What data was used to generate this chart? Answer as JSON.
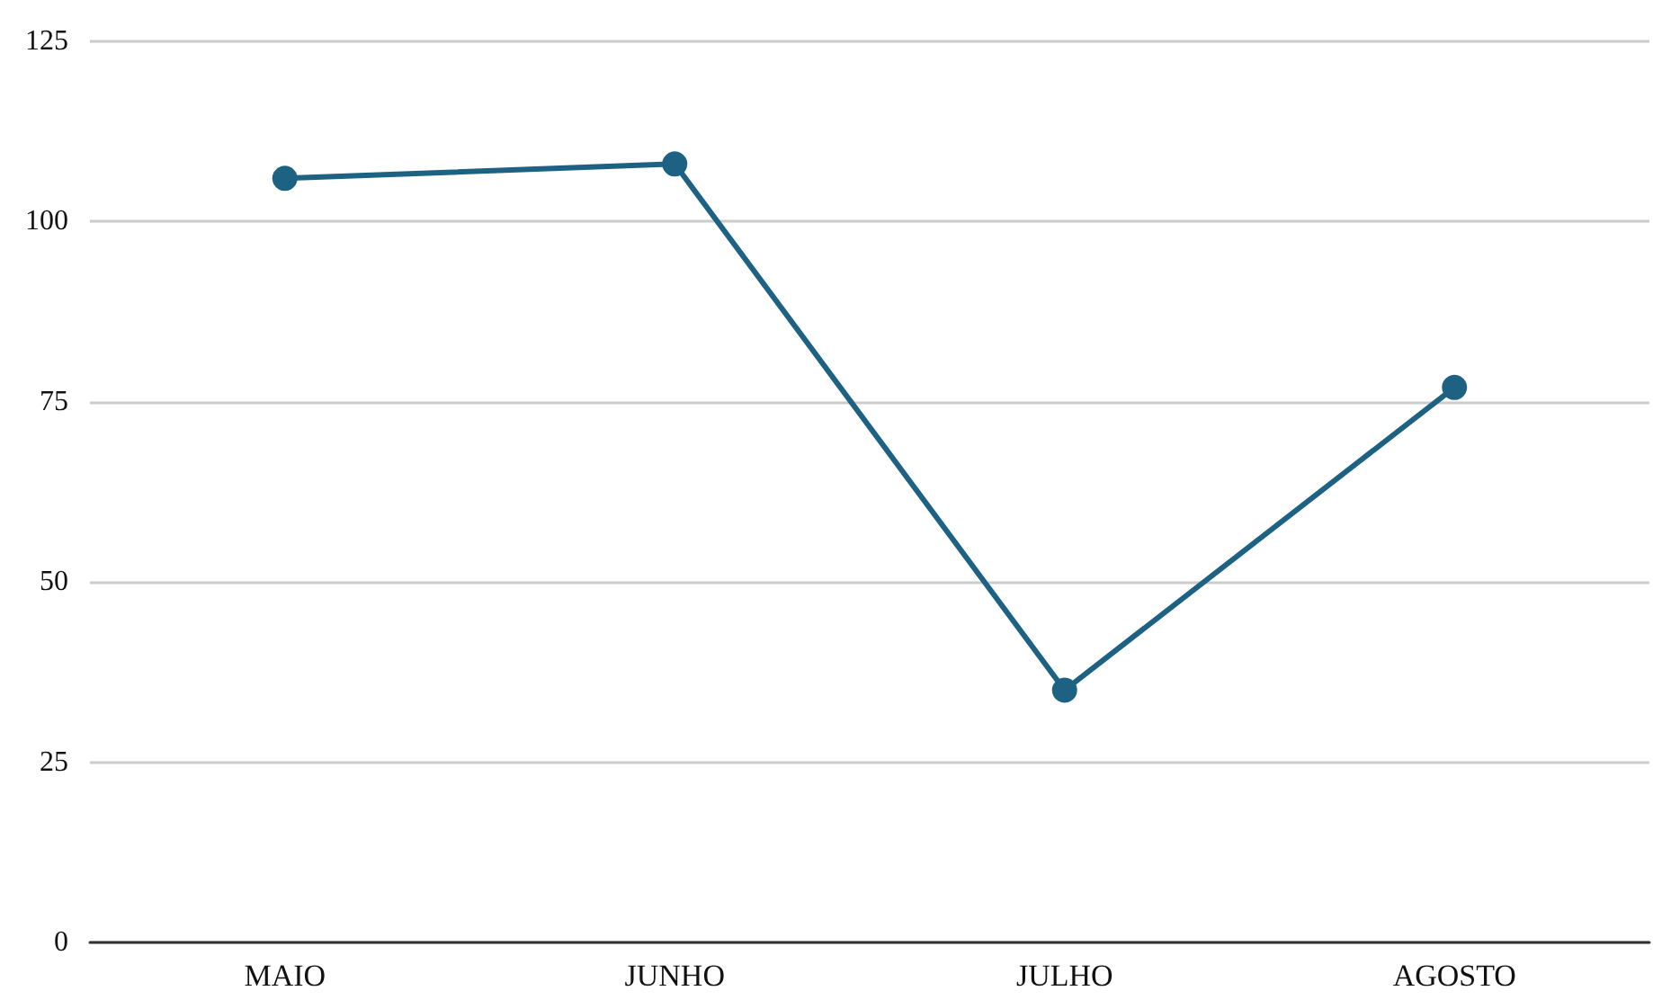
{
  "chart_data": {
    "type": "line",
    "categories": [
      "MAIO",
      "JUNHO",
      "JULHO",
      "AGOSTO"
    ],
    "series": [
      {
        "color": "#1d6283",
        "values": [
          106,
          108,
          35,
          77
        ]
      }
    ],
    "ylim": [
      0,
      125
    ],
    "yticks": [
      0,
      25,
      50,
      75,
      100,
      125
    ],
    "grid": "y",
    "marker": "circle",
    "line_style": "solid"
  }
}
